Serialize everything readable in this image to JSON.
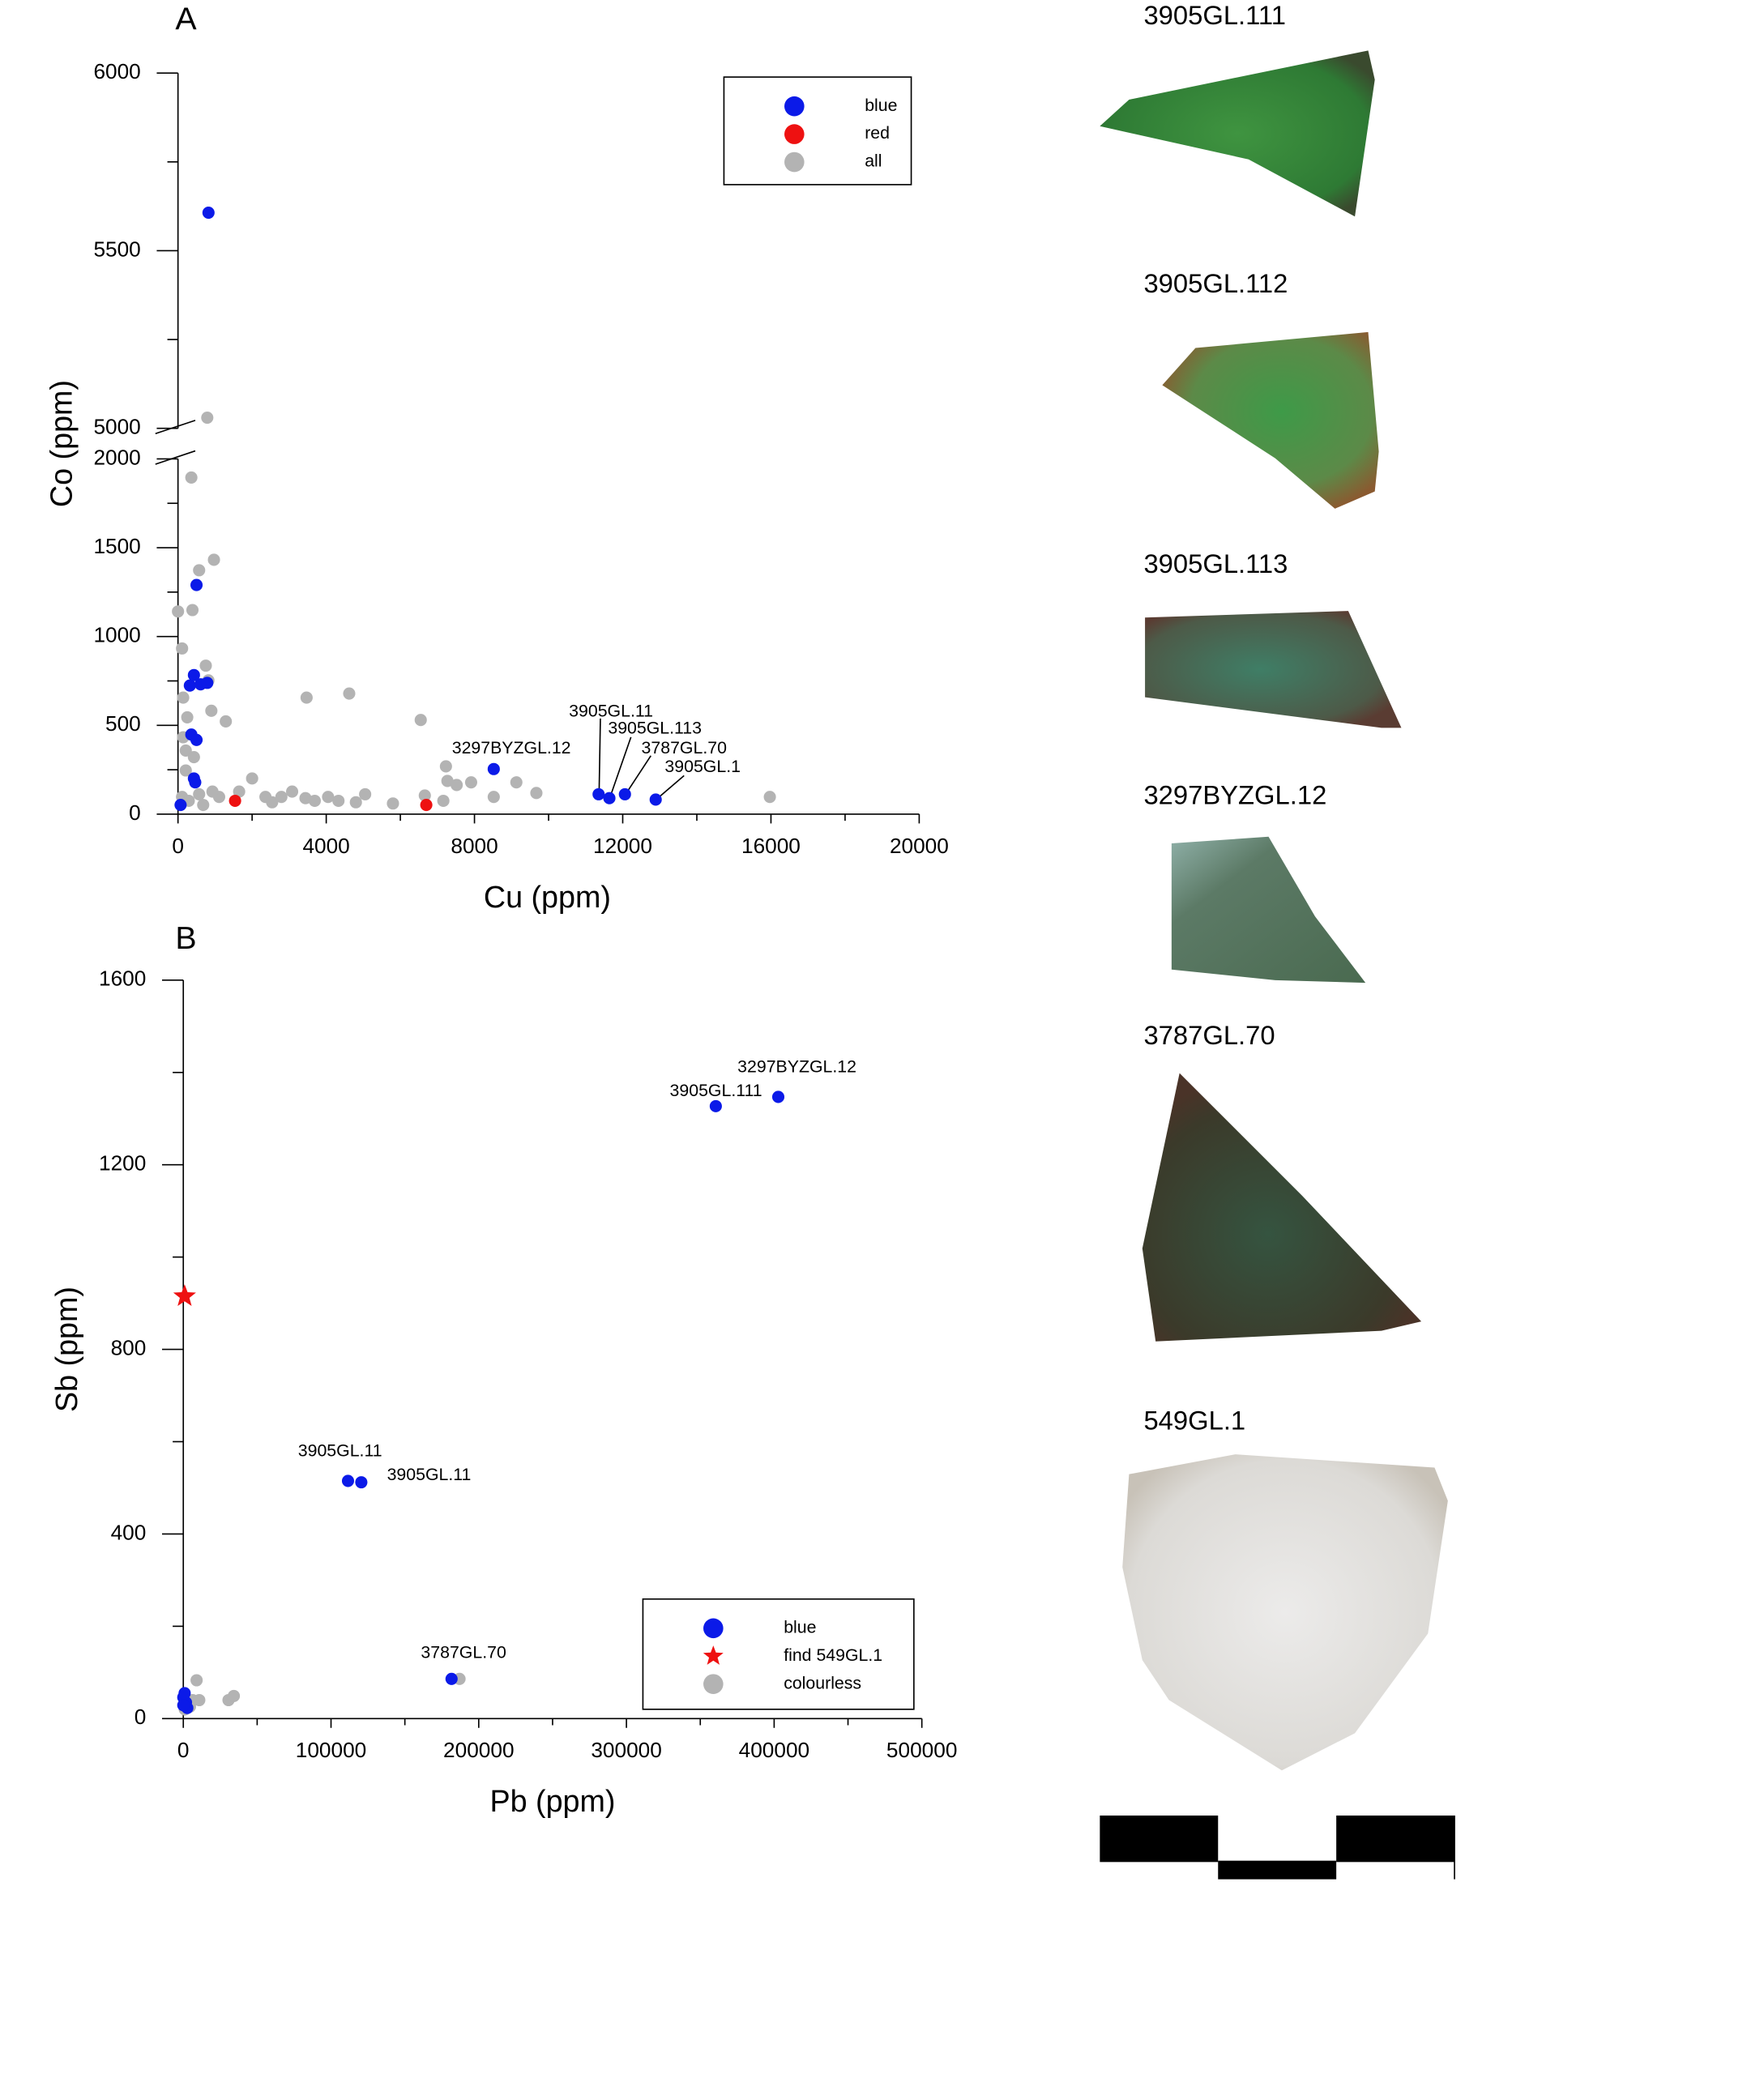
{
  "chart_data": [
    {
      "type": "scatter",
      "title": "A",
      "x_label": "Cu (ppm)",
      "y_label": "Co (ppm)",
      "xlim": [
        0,
        20000
      ],
      "xticks": [
        0,
        4000,
        8000,
        12000,
        16000,
        20000
      ],
      "ylim": [
        0,
        6000
      ],
      "ybreak": [
        2000,
        5000
      ],
      "yticks": [
        0,
        500,
        1000,
        1500,
        2000,
        5000,
        5500,
        6000
      ],
      "legend": "upper right",
      "series": [
        {
          "name": "blue",
          "color": "#0b1ae8",
          "x": [
            823,
            500,
            320,
            430,
            610,
            790,
            360,
            500,
            430,
            465,
            70,
            8520,
            11350,
            11640,
            12060,
            12890
          ],
          "y": [
            5607,
            1290,
            724,
            783,
            731,
            739,
            448,
            418,
            201,
            179,
            52,
            254,
            112,
            90,
            112,
            82
          ]
        },
        {
          "name": "red",
          "color": "#ee1111",
          "x": [
            1540,
            6700
          ],
          "y": [
            75,
            52
          ]
        },
        {
          "name": "all",
          "color": "#b3b3b3",
          "x": [
            790,
            360,
            970,
            570,
            0,
            390,
            110,
            750,
            820,
            3470,
            4620,
            6550,
            900,
            1290,
            250,
            140,
            210,
            7230,
            7270,
            7520,
            7910,
            8520,
            9130,
            9670,
            15970,
            2000,
            3080,
            3690,
            4330,
            5050,
            5800,
            7160,
            6660,
            2360,
            1650,
            1110,
            2540,
            4050,
            210,
            110,
            290,
            570,
            930,
            430,
            140,
            680,
            2790,
            4800,
            3440
          ],
          "y": [
            5030,
            1895,
            1432,
            1373,
            1141,
            1149,
            933,
            836,
            753,
            656,
            679,
            530,
            582,
            522,
            545,
            433,
            358,
            269,
            187,
            164,
            179,
            97,
            179,
            119,
            97,
            201,
            127,
            75,
            75,
            112,
            60,
            75,
            105,
            97,
            127,
            97,
            67,
            97,
            246,
            97,
            75,
            112,
            127,
            321,
            656,
            52,
            97,
            67,
            90
          ]
        }
      ],
      "annotations": [
        "3297BYZGL.12",
        "3905GL.11",
        "3905GL.113",
        "3787GL.70",
        "3905GL.1"
      ]
    },
    {
      "type": "scatter",
      "title": "B",
      "x_label": "Pb (ppm)",
      "y_label": "Sb (ppm)",
      "xlim": [
        0,
        500000
      ],
      "xticks": [
        0,
        100000,
        200000,
        300000,
        400000,
        500000
      ],
      "ylim": [
        0,
        1600
      ],
      "yticks": [
        0,
        400,
        800,
        1200,
        1600
      ],
      "legend": "lower right",
      "series": [
        {
          "name": "blue",
          "color": "#0b1ae8",
          "marker": "circle",
          "x": [
            360500,
            402800,
            111500,
            120500,
            181600,
            0,
            1800,
            900,
            2700,
            0
          ],
          "y": [
            1327,
            1347,
            515,
            512,
            86,
            46,
            35,
            55,
            23,
            29
          ]
        },
        {
          "name": "find 549GL.1",
          "color": "#ee1111",
          "marker": "star",
          "x": [
            900
          ],
          "y": [
            915
          ]
        },
        {
          "name": "colourless",
          "color": "#b3b3b3",
          "marker": "circle",
          "x": [
            9000,
            187000,
            30600,
            34200,
            10800,
            4500,
            6300,
            1000
          ],
          "y": [
            83,
            86,
            40,
            49,
            40,
            26,
            40,
            20
          ]
        }
      ],
      "annotations": [
        "3297BYZGL.12",
        "3905GL.111",
        "3905GL.11",
        "3905GL.11",
        "3787GL.70"
      ]
    }
  ],
  "photos": [
    "3905GL.111",
    "3905GL.112",
    "3905GL.113",
    "3297BYZGL.12",
    "3787GL.70",
    "549GL.1"
  ]
}
